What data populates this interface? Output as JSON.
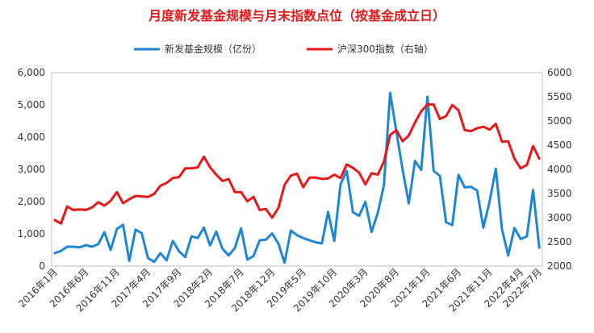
{
  "chart_data": {
    "type": "line",
    "title": "月度新发基金规模与月末指数点位（按基金成立日）",
    "x_labels_shown": [
      "2016年1月",
      "2016年6月",
      "2016年11月",
      "2017年4月",
      "2017年9月",
      "2018年2月",
      "2018年7月",
      "2018年12月",
      "2019年5月",
      "2019年10月",
      "2020年3月",
      "2020年8月",
      "2021年1月",
      "2021年6月",
      "2021年11月",
      "2022年4月",
      "2022年7月"
    ],
    "months": [
      "2016-01",
      "2016-02",
      "2016-03",
      "2016-04",
      "2016-05",
      "2016-06",
      "2016-07",
      "2016-08",
      "2016-09",
      "2016-10",
      "2016-11",
      "2016-12",
      "2017-01",
      "2017-02",
      "2017-03",
      "2017-04",
      "2017-05",
      "2017-06",
      "2017-07",
      "2017-08",
      "2017-09",
      "2017-10",
      "2017-11",
      "2017-12",
      "2018-01",
      "2018-02",
      "2018-03",
      "2018-04",
      "2018-05",
      "2018-06",
      "2018-07",
      "2018-08",
      "2018-09",
      "2018-10",
      "2018-11",
      "2018-12",
      "2019-01",
      "2019-02",
      "2019-03",
      "2019-04",
      "2019-05",
      "2019-06",
      "2019-07",
      "2019-08",
      "2019-09",
      "2019-10",
      "2019-11",
      "2019-12",
      "2020-01",
      "2020-02",
      "2020-03",
      "2020-04",
      "2020-05",
      "2020-06",
      "2020-07",
      "2020-08",
      "2020-09",
      "2020-10",
      "2020-11",
      "2020-12",
      "2021-01",
      "2021-02",
      "2021-03",
      "2021-04",
      "2021-05",
      "2021-06",
      "2021-07",
      "2021-08",
      "2021-09",
      "2021-10",
      "2021-11",
      "2021-12",
      "2022-01",
      "2022-02",
      "2022-03",
      "2022-04",
      "2022-05",
      "2022-06",
      "2022-07"
    ],
    "left_axis": {
      "min": 0,
      "max": 6000,
      "ticks": [
        "0",
        "1,000",
        "2,000",
        "3,000",
        "4,000",
        "5,000",
        "6,000"
      ]
    },
    "right_axis": {
      "min": 2000,
      "max": 6000,
      "ticks": [
        "2000",
        "2500",
        "3000",
        "3500",
        "4000",
        "4500",
        "5000",
        "5500",
        "6000"
      ]
    },
    "series": [
      {
        "name": "新发基金规模（亿份）",
        "axis": "left",
        "color": "#1f86d6",
        "values": [
          400,
          470,
          600,
          600,
          580,
          650,
          600,
          680,
          1050,
          500,
          1150,
          1280,
          160,
          1130,
          1020,
          250,
          130,
          400,
          180,
          780,
          460,
          280,
          920,
          870,
          1190,
          640,
          1070,
          540,
          330,
          560,
          1170,
          200,
          310,
          800,
          820,
          1010,
          700,
          100,
          1100,
          960,
          870,
          800,
          740,
          700,
          1680,
          780,
          2530,
          2950,
          1670,
          1560,
          1990,
          1060,
          1650,
          2510,
          5370,
          4170,
          3000,
          1940,
          3260,
          2980,
          5250,
          2950,
          2800,
          1360,
          1270,
          2830,
          2440,
          2460,
          2340,
          1190,
          2000,
          3020,
          1140,
          330,
          1180,
          840,
          920,
          2360,
          570
        ]
      },
      {
        "name": "沪深300指数（右轴）",
        "axis": "right",
        "color": "#e81818",
        "values": [
          2950,
          2880,
          3230,
          3160,
          3170,
          3160,
          3210,
          3320,
          3250,
          3350,
          3530,
          3300,
          3380,
          3450,
          3440,
          3430,
          3490,
          3660,
          3720,
          3820,
          3840,
          4020,
          4020,
          4040,
          4260,
          4040,
          3890,
          3760,
          3800,
          3530,
          3530,
          3340,
          3430,
          3160,
          3180,
          3000,
          3200,
          3680,
          3870,
          3910,
          3630,
          3830,
          3830,
          3800,
          3810,
          3890,
          3820,
          4100,
          4030,
          3930,
          3690,
          3920,
          3890,
          4160,
          4710,
          4810,
          4580,
          4700,
          4970,
          5200,
          5340,
          5340,
          5040,
          5100,
          5330,
          5220,
          4810,
          4790,
          4850,
          4880,
          4820,
          4940,
          4570,
          4580,
          4220,
          4020,
          4090,
          4480,
          4220
        ]
      }
    ],
    "legend_position": "top"
  }
}
